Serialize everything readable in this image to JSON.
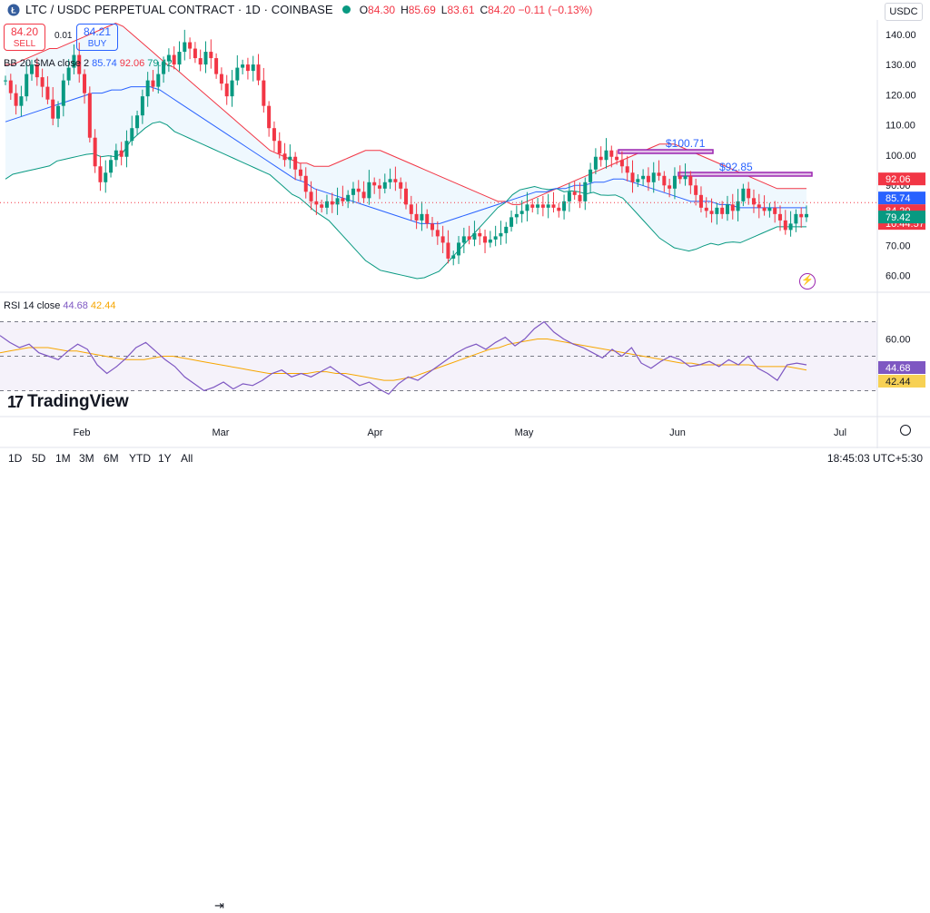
{
  "header": {
    "title": "LTC / USDC PERPETUAL CONTRACT · 1D · COINBASE",
    "ohlc": [
      {
        "k": "O",
        "v": "84.30"
      },
      {
        "k": "H",
        "v": "85.69"
      },
      {
        "k": "L",
        "v": "83.61"
      },
      {
        "k": "C",
        "v": "84.20 −0.11 (−0.13%)"
      }
    ],
    "currency": "USDC"
  },
  "trade": {
    "sell_price": "84.20",
    "sell_label": "SELL",
    "spread": "0.01",
    "buy_price": "84.21",
    "buy_label": "BUY"
  },
  "bb_legend": {
    "label": "BB 20 SMA close 2",
    "basis": "85.74",
    "upper": "92.06",
    "lower": "79.42"
  },
  "rsi_legend": {
    "label": "RSI 14 close",
    "rsi": "44.68",
    "ma": "42.44"
  },
  "price_axis": {
    "ticks": [
      "140.00",
      "130.00",
      "120.00",
      "110.00",
      "100.00",
      "90.00",
      "80.00",
      "70.00",
      "60.00"
    ],
    "labels": [
      {
        "text": "92.06",
        "color": "#f23645"
      },
      {
        "text": "85.74",
        "color": "#2962ff"
      },
      {
        "text": "84.20",
        "color": "#f23645"
      },
      {
        "text": "10:44:57",
        "color": "#f23645"
      },
      {
        "text": "79.42",
        "color": "#089981"
      }
    ]
  },
  "rsi_axis": {
    "ticks": [
      "60.00"
    ],
    "labels": [
      {
        "text": "44.68",
        "color": "#7e57c2"
      },
      {
        "text": "42.44",
        "color": "#f7d154"
      }
    ]
  },
  "time_axis": [
    "Feb",
    "Mar",
    "Apr",
    "May",
    "Jun",
    "Jul"
  ],
  "annotations": [
    {
      "text": "$100.71"
    },
    {
      "text": "$92.85"
    }
  ],
  "logo": {
    "text": "TradingView"
  },
  "bottom": {
    "timeframes": [
      "1D",
      "5D",
      "1M",
      "3M",
      "6M",
      "YTD",
      "1Y",
      "All"
    ],
    "clock": "18:45:03 UTC+5:30"
  },
  "chart_data": {
    "type": "candlestick",
    "price_range": [
      60,
      145
    ],
    "rsi_range": [
      25,
      75
    ],
    "closes": [
      126,
      122,
      118,
      121,
      128,
      131,
      127,
      124,
      120,
      114,
      118,
      126,
      130,
      134,
      128,
      122,
      108,
      99,
      94,
      97,
      101,
      104,
      102,
      107,
      111,
      115,
      121,
      126,
      124,
      128,
      132,
      134,
      131,
      135,
      138,
      136,
      133,
      131,
      135,
      133,
      128,
      125,
      121,
      126,
      130,
      131,
      129,
      131,
      126,
      118,
      111,
      107,
      103,
      101,
      102,
      98,
      96,
      91,
      88,
      87,
      86,
      88,
      87,
      89,
      88,
      90,
      92,
      91,
      89,
      94,
      93,
      92,
      94,
      95,
      94,
      92,
      87,
      84,
      82,
      84,
      81,
      79,
      77,
      75,
      70,
      71,
      75,
      77,
      76,
      78,
      77,
      75,
      76,
      77,
      78,
      80,
      83,
      84,
      85,
      87,
      86,
      87,
      86,
      87,
      86,
      85,
      88,
      91,
      90,
      88,
      94,
      98,
      102,
      101,
      104,
      102,
      101,
      99,
      97,
      94,
      95,
      96,
      94,
      97,
      96,
      93,
      92,
      96,
      95,
      96,
      93,
      90,
      86,
      85,
      84,
      86,
      84,
      87,
      85,
      88,
      92,
      89,
      87,
      86,
      85,
      86,
      84,
      82,
      79,
      81,
      84,
      83,
      84
    ],
    "bb_upper": [
      131,
      131,
      132,
      133,
      134,
      135,
      136,
      136,
      137,
      138,
      139,
      140,
      141,
      142,
      143,
      144,
      143,
      141,
      139,
      137,
      135,
      133,
      131,
      130,
      128,
      126,
      124,
      122,
      120,
      118,
      116,
      114,
      112,
      110,
      108,
      106,
      104,
      103,
      102,
      101,
      100,
      100,
      99,
      99,
      99,
      100,
      101,
      102,
      103,
      104,
      104,
      104,
      103,
      102,
      101,
      100,
      99,
      98,
      97,
      96,
      95,
      94,
      93,
      92,
      91,
      90,
      89,
      88,
      88,
      87,
      87,
      88,
      89,
      90,
      91,
      92,
      93,
      94,
      95,
      96,
      97,
      98,
      99,
      100,
      101,
      102,
      103,
      104,
      105,
      106,
      106,
      106,
      105,
      104,
      103,
      102,
      101,
      100,
      99,
      98,
      97,
      96,
      95,
      94,
      93,
      92,
      92,
      92,
      92,
      92
    ],
    "bb_basis": [
      113,
      114,
      115,
      116,
      117,
      118,
      119,
      120,
      121,
      122,
      122,
      123,
      123,
      124,
      124,
      124,
      123,
      121,
      119,
      117,
      115,
      113,
      111,
      109,
      107,
      105,
      103,
      101,
      99,
      97,
      95,
      94,
      92,
      91,
      90,
      89,
      88,
      87,
      86,
      85,
      84,
      83,
      82,
      81,
      81,
      81,
      82,
      83,
      84,
      85,
      86,
      87,
      88,
      89,
      90,
      91,
      91,
      92,
      92,
      93,
      93,
      94,
      94,
      95,
      95,
      94,
      93,
      92,
      91,
      90,
      89,
      88,
      88,
      88,
      87,
      87,
      86,
      86,
      86,
      86,
      86,
      86,
      86,
      86
    ],
    "rsi": [
      62,
      58,
      55,
      57,
      52,
      50,
      48,
      53,
      57,
      54,
      45,
      40,
      44,
      49,
      55,
      58,
      53,
      48,
      44,
      38,
      34,
      30,
      32,
      35,
      31,
      34,
      33,
      36,
      40,
      42,
      38,
      40,
      38,
      41,
      44,
      40,
      37,
      33,
      35,
      31,
      28,
      34,
      38,
      36,
      40,
      44,
      48,
      52,
      55,
      57,
      54,
      58,
      61,
      56,
      60,
      66,
      70,
      64,
      60,
      57,
      55,
      52,
      49,
      54,
      50,
      55,
      46,
      43,
      47,
      50,
      48,
      44,
      45,
      47,
      44,
      48,
      45,
      50,
      43,
      40,
      36,
      45,
      46,
      45
    ],
    "rsi_ma": [
      52,
      53,
      54,
      55,
      55,
      55,
      54,
      53,
      53,
      52,
      51,
      50,
      49,
      48,
      48,
      48,
      49,
      50,
      50,
      49,
      48,
      47,
      46,
      45,
      44,
      43,
      42,
      41,
      40,
      40,
      40,
      40,
      40,
      41,
      41,
      40,
      40,
      39,
      38,
      37,
      36,
      36,
      37,
      38,
      40,
      42,
      44,
      46,
      48,
      50,
      52,
      54,
      55,
      57,
      58,
      59,
      60,
      60,
      59,
      58,
      57,
      56,
      55,
      54,
      53,
      52,
      51,
      50,
      49,
      48,
      47,
      46,
      46,
      45,
      45,
      45,
      45,
      45,
      45,
      44,
      44,
      44,
      44,
      43,
      42
    ]
  }
}
